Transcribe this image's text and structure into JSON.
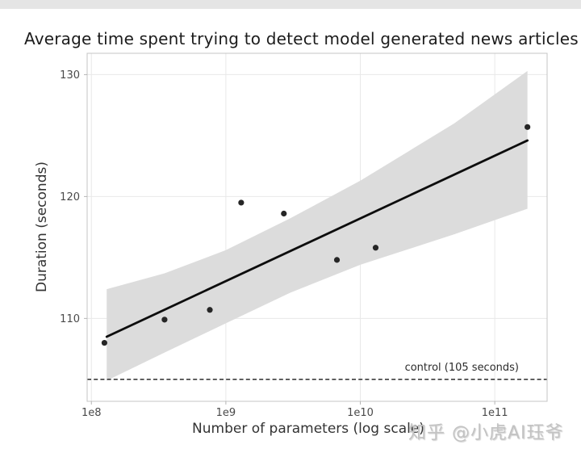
{
  "figure": {
    "title": "Average time spent trying to detect model generated news articles",
    "watermark": "知乎 @小虎AI珏爷"
  },
  "chart_data": {
    "type": "scatter",
    "title": "Average time spent trying to detect model generated news articles",
    "xlabel": "Number of parameters (log scale)",
    "ylabel": "Duration (seconds)",
    "x_scale": "log",
    "grid": true,
    "xlim": [
      93000000,
      245000000000
    ],
    "ylim": [
      103.2,
      131.75
    ],
    "xticks": [
      {
        "value": 100000000,
        "label": "1e8"
      },
      {
        "value": 1000000000,
        "label": "1e9"
      },
      {
        "value": 10000000000,
        "label": "1e10"
      },
      {
        "value": 100000000000,
        "label": "1e11"
      }
    ],
    "yticks": [
      {
        "value": 110,
        "label": "110"
      },
      {
        "value": 120,
        "label": "120"
      },
      {
        "value": 130,
        "label": "130"
      }
    ],
    "points": [
      {
        "params": 125000000,
        "seconds": 108.0
      },
      {
        "params": 350000000,
        "seconds": 109.9
      },
      {
        "params": 760000000,
        "seconds": 110.7
      },
      {
        "params": 1300000000,
        "seconds": 119.5
      },
      {
        "params": 2700000000,
        "seconds": 118.6
      },
      {
        "params": 6700000000,
        "seconds": 114.8
      },
      {
        "params": 13000000000,
        "seconds": 115.8
      },
      {
        "params": 175000000000,
        "seconds": 125.7
      }
    ],
    "regression_line": {
      "x": [
        130000000,
        175000000000
      ],
      "y": [
        108.5,
        124.6
      ]
    },
    "confidence_band": {
      "x": [
        130000000,
        350000000,
        1000000000,
        3000000000,
        10000000000,
        50000000000,
        175000000000
      ],
      "upper": [
        112.4,
        113.7,
        115.6,
        118.2,
        121.3,
        126.0,
        130.3
      ],
      "lower": [
        104.9,
        107.2,
        109.6,
        112.1,
        114.4,
        116.9,
        119.0
      ]
    },
    "control_line": {
      "value": 105,
      "label": "control (105 seconds)"
    },
    "colors": {
      "point": "#262626",
      "regression_line": "#0d0d0d",
      "band": "#dcdcdc",
      "control_line": "#1a1a1a",
      "grid": "#e8e8e8",
      "spine": "#c4c4c4",
      "tick": "#b5b5b5",
      "tick_label": "#4a4a4a",
      "annotation": "#2b2b2b"
    }
  }
}
